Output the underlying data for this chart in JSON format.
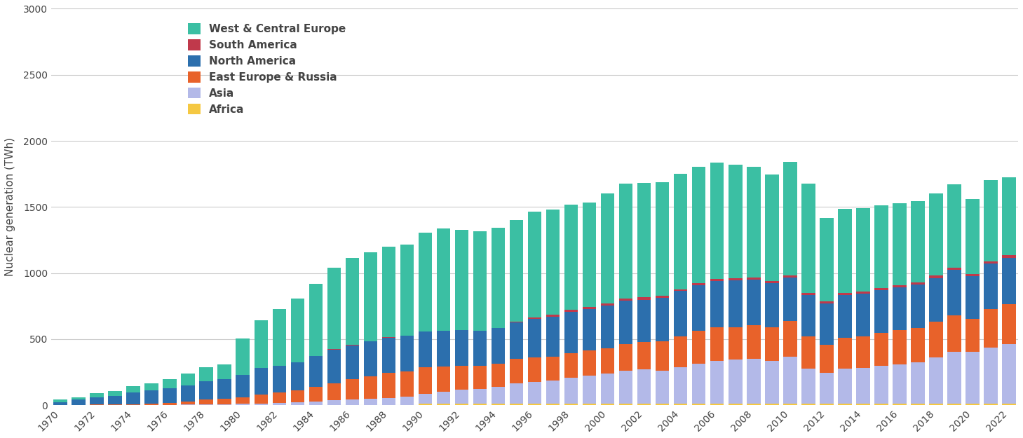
{
  "years": [
    1970,
    1971,
    1972,
    1973,
    1974,
    1975,
    1976,
    1977,
    1978,
    1979,
    1980,
    1981,
    1982,
    1983,
    1984,
    1985,
    1986,
    1987,
    1988,
    1989,
    1990,
    1991,
    1992,
    1993,
    1994,
    1995,
    1996,
    1997,
    1998,
    1999,
    2000,
    2001,
    2002,
    2003,
    2004,
    2005,
    2006,
    2007,
    2008,
    2009,
    2010,
    2011,
    2012,
    2013,
    2014,
    2015,
    2016,
    2017,
    2018,
    2019,
    2020,
    2021,
    2022
  ],
  "regions": [
    {
      "name": "Africa",
      "color": "#f5c842",
      "values": [
        0,
        0,
        0,
        0,
        0,
        0,
        0,
        0,
        0,
        0,
        0,
        0,
        0,
        0,
        0,
        0,
        0,
        0,
        0,
        0,
        10,
        10,
        10,
        10,
        10,
        12,
        12,
        12,
        12,
        12,
        12,
        12,
        12,
        12,
        12,
        12,
        12,
        12,
        12,
        12,
        12,
        12,
        12,
        12,
        12,
        12,
        12,
        12,
        12,
        12,
        12,
        12,
        12
      ]
    },
    {
      "name": "Asia",
      "color": "#b3b9e8",
      "values": [
        0,
        0,
        0,
        0,
        0,
        0,
        2,
        4,
        7,
        8,
        9,
        12,
        18,
        22,
        30,
        38,
        43,
        47,
        55,
        63,
        78,
        93,
        107,
        112,
        131,
        152,
        165,
        175,
        196,
        214,
        228,
        248,
        258,
        247,
        273,
        303,
        325,
        333,
        337,
        325,
        355,
        265,
        232,
        265,
        268,
        285,
        295,
        312,
        348,
        390,
        391,
        426,
        448
      ]
    },
    {
      "name": "East Europe & Russia",
      "color": "#e8622a",
      "values": [
        2,
        3,
        5,
        6,
        7,
        11,
        16,
        23,
        35,
        42,
        53,
        68,
        76,
        88,
        107,
        130,
        155,
        171,
        188,
        195,
        199,
        192,
        183,
        175,
        172,
        186,
        185,
        181,
        187,
        186,
        192,
        200,
        209,
        222,
        234,
        246,
        253,
        246,
        254,
        252,
        268,
        244,
        215,
        235,
        240,
        248,
        260,
        259,
        271,
        279,
        252,
        291,
        306
      ]
    },
    {
      "name": "North America",
      "color": "#2c6fad",
      "values": [
        22,
        38,
        55,
        63,
        91,
        100,
        110,
        124,
        141,
        147,
        167,
        200,
        205,
        216,
        235,
        254,
        256,
        263,
        269,
        267,
        269,
        266,
        268,
        265,
        270,
        277,
        290,
        303,
        311,
        318,
        321,
        329,
        319,
        331,
        345,
        348,
        350,
        353,
        348,
        337,
        332,
        313,
        309,
        323,
        324,
        326,
        323,
        329,
        332,
        343,
        321,
        342,
        351
      ]
    },
    {
      "name": "South America",
      "color": "#c0394b",
      "values": [
        0,
        0,
        0,
        0,
        0,
        0,
        0,
        0,
        0,
        0,
        0,
        0,
        0,
        1,
        1,
        2,
        2,
        2,
        2,
        2,
        2,
        2,
        2,
        2,
        2,
        5,
        10,
        13,
        14,
        14,
        15,
        16,
        17,
        18,
        14,
        17,
        18,
        18,
        16,
        16,
        16,
        16,
        16,
        17,
        17,
        17,
        19,
        18,
        18,
        18,
        18,
        18,
        18
      ]
    },
    {
      "name": "West & Central Europe",
      "color": "#3bbfa3",
      "values": [
        17,
        21,
        30,
        37,
        45,
        57,
        70,
        87,
        103,
        113,
        278,
        365,
        426,
        481,
        548,
        617,
        656,
        674,
        686,
        688,
        747,
        775,
        759,
        752,
        758,
        771,
        805,
        797,
        796,
        790,
        835,
        870,
        866,
        858,
        872,
        876,
        876,
        858,
        839,
        803,
        857,
        826,
        634,
        634,
        630,
        625,
        617,
        616,
        622,
        632,
        567,
        614,
        588
      ]
    }
  ],
  "ylabel": "Nuclear generation (TWh)",
  "ylim": [
    0,
    3000
  ],
  "yticks": [
    0,
    500,
    1000,
    1500,
    2000,
    2500,
    3000
  ],
  "background_color": "#ffffff",
  "grid_color": "#cccccc",
  "label_fontsize": 11,
  "tick_fontsize": 10
}
